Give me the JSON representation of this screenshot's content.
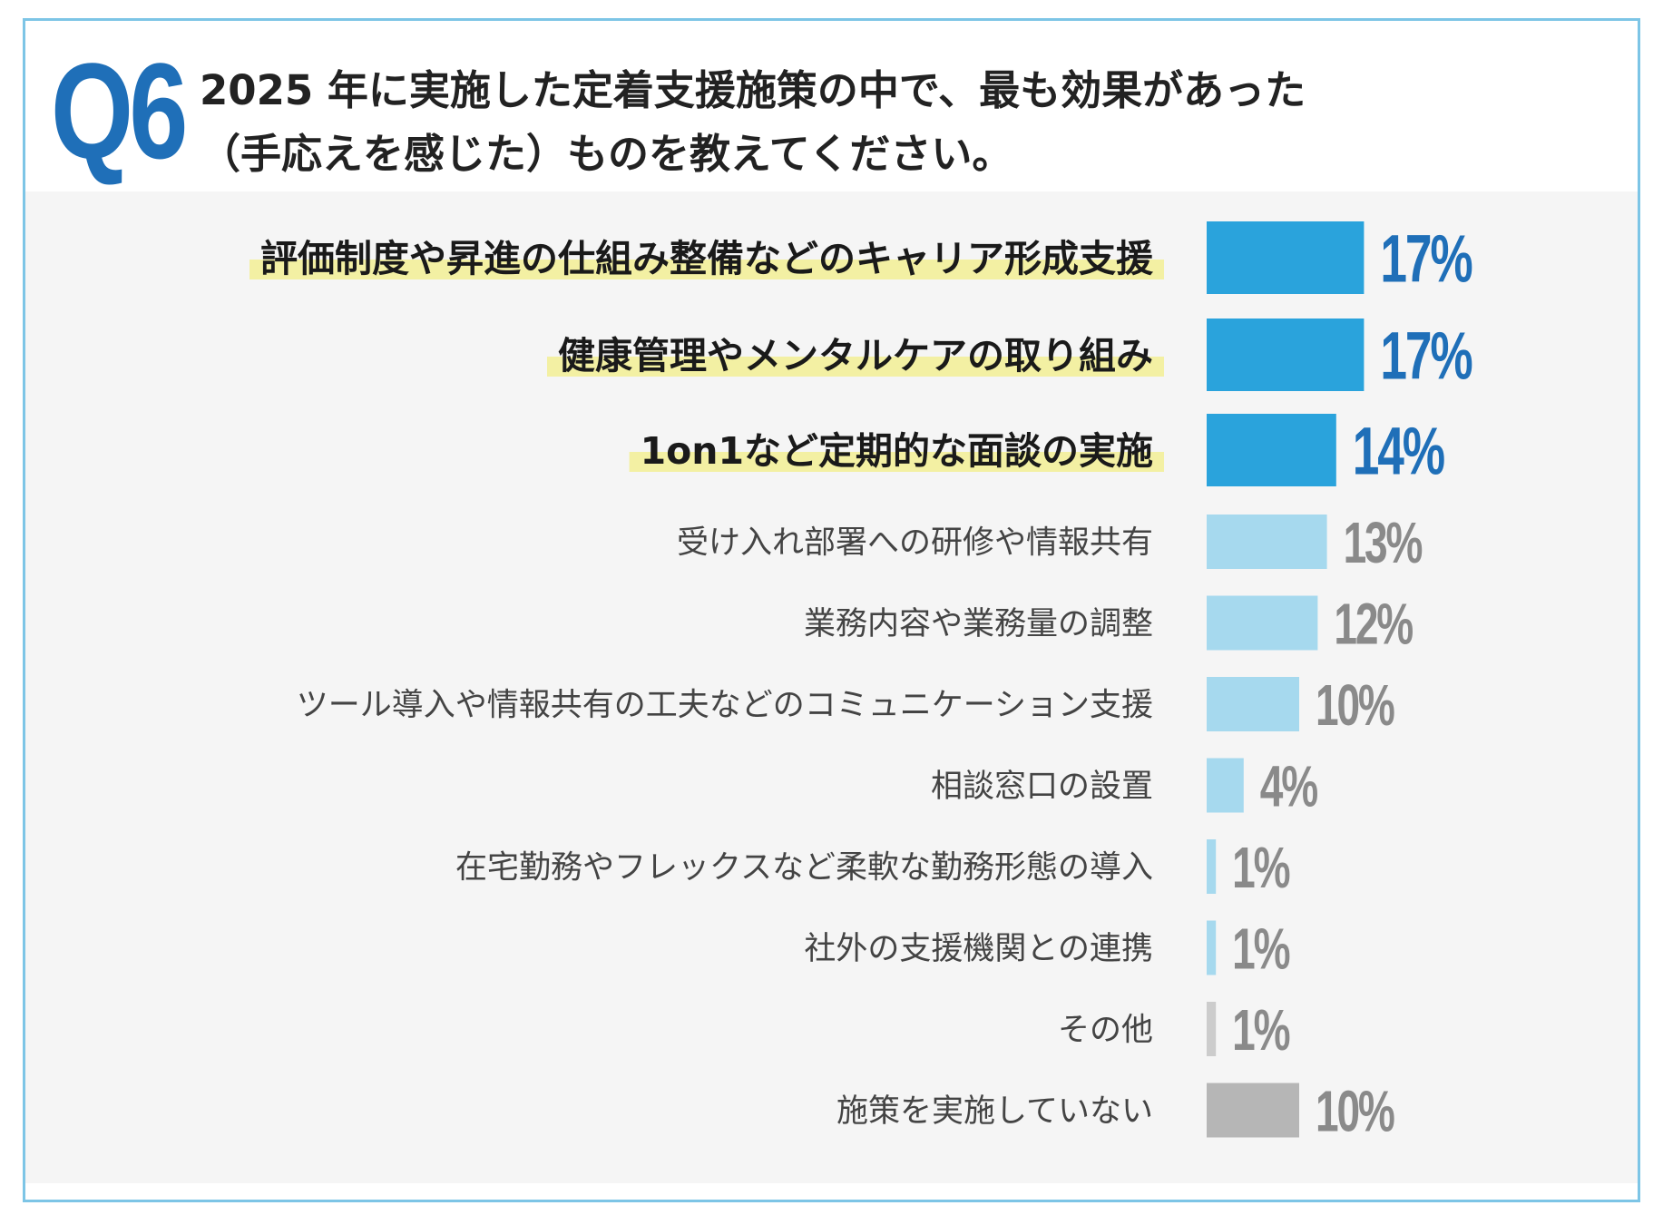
{
  "header": {
    "q_mark": "Q6",
    "question_line1": "2025 年に実施した定着支援施策の中で、最も効果があった",
    "question_line2": "（手応えを感じた）ものを教えてください。"
  },
  "colors": {
    "accent_blue": "#2aa3dc",
    "light_blue": "#a6d9ee",
    "light_gray_bar": "#cccccc",
    "gray_bar": "#b6b6b6",
    "highlight_yellow": "#f3f0a3",
    "value_blue": "#1f6fb8",
    "value_gray": "#8a8a8a"
  },
  "chart_data": {
    "type": "bar",
    "orientation": "horizontal",
    "unit": "%",
    "categories": [
      "評価制度や昇進の仕組み整備などのキャリア形成支援",
      "健康管理やメンタルケアの取り組み",
      "1on1など定期的な面談の実施",
      "受け入れ部署への研修や情報共有",
      "業務内容や業務量の調整",
      "ツール導入や情報共有の工夫などのコミュニケーション支援",
      "相談窓口の設置",
      "在宅勤務やフレックスなど柔軟な勤務形態の導入",
      "社外の支援機関との連携",
      "その他",
      "施策を実施していない"
    ],
    "values": [
      17,
      17,
      14,
      13,
      12,
      10,
      4,
      1,
      1,
      1,
      10
    ],
    "value_labels": [
      "17%",
      "17%",
      "14%",
      "13%",
      "12%",
      "10%",
      "4%",
      "1%",
      "1%",
      "1%",
      "10%"
    ],
    "highlighted": [
      true,
      true,
      true,
      false,
      false,
      false,
      false,
      false,
      false,
      false,
      false
    ],
    "bar_styles": [
      "top",
      "top",
      "top",
      "light",
      "light",
      "light",
      "light",
      "light",
      "light",
      "other",
      "none"
    ]
  }
}
